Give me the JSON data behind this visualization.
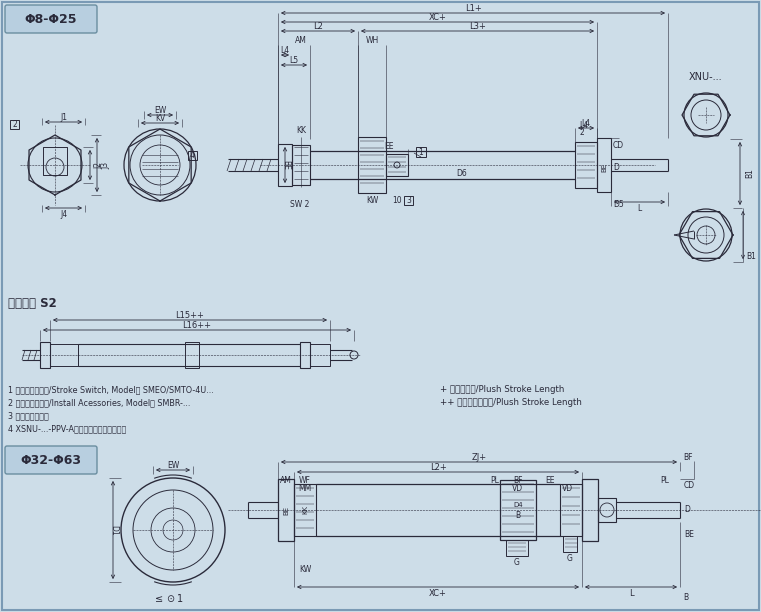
{
  "bg_color": "#cddde8",
  "line_color": "#2a2a3a",
  "dim_color": "#2a2a3a",
  "title_bg": "#b8cfe0",
  "fig_width": 7.61,
  "fig_height": 6.12,
  "phi8_25_label": "Φ8-Φ25",
  "phi32_63_label": "Φ32-Φ63",
  "special_label": "特殊设计 S2",
  "xnu_label": "XNU-...",
  "note1": "1 行程开关，型号/Stroke Switch, Model； SMEO/SMTO-4U...",
  "note2": "2 安装附件，型号/Install Acessories, Model； SMBR-...",
  "note3": "3 钉形板手定位孔",
  "note4": "4 XSNU-...-PPV-A型气缸终端缓冲调节螺钉",
  "plus_note1": "+ 表示加行程/Plush Stroke Length",
  "plus_note2": "++ 表示加两倍行程/Plush Stroke Length"
}
